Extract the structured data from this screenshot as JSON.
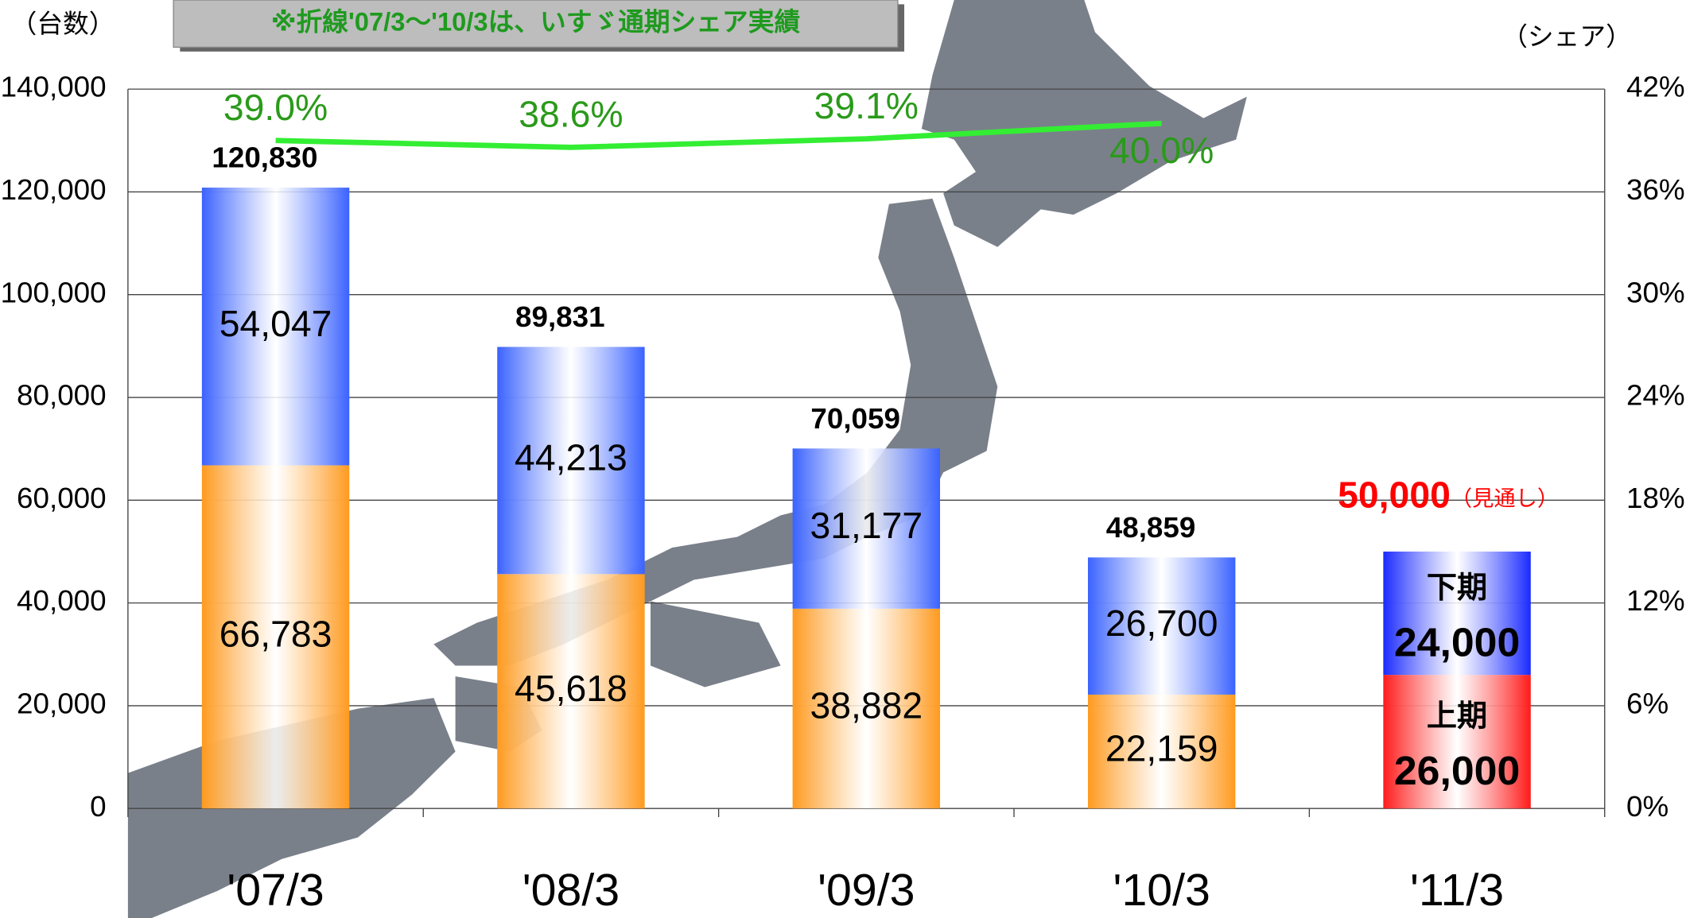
{
  "chart_data": {
    "type": "bar",
    "note": "※折線'07/3～'10/3は、いすゞ通期シェア実績",
    "y_label": "（台数）",
    "y2_label": "（シェア）",
    "forecast_note": "（見通し）",
    "categories": [
      "'07/3",
      "'08/3",
      "'09/3",
      "'10/3",
      "'11/3"
    ],
    "series": [
      {
        "name": "上期",
        "color": "#ff9a1f",
        "colors": [
          "#ff9a1f",
          "#ff9a1f",
          "#ff9a1f",
          "#ff9a1f",
          "#ff1a1a"
        ],
        "values": [
          66783,
          45618,
          38882,
          22159,
          26000
        ],
        "value_labels": [
          "66,783",
          "45,618",
          "38,882",
          "22,159",
          "26,000"
        ]
      },
      {
        "name": "下期",
        "color": "#3a62ff",
        "colors": [
          "#3a62ff",
          "#3a62ff",
          "#3a62ff",
          "#3a62ff",
          "#1a2aff"
        ],
        "values": [
          54047,
          44213,
          31177,
          26700,
          24000
        ],
        "value_labels": [
          "54,047",
          "44,213",
          "31,177",
          "26,700",
          "24,000"
        ]
      }
    ],
    "totals": {
      "values": [
        120830,
        89831,
        70059,
        48859,
        50000
      ],
      "value_labels": [
        "120,830",
        "89,831",
        "70,059",
        "48,859",
        "50,000"
      ],
      "colors": [
        "#000000",
        "#000000",
        "#000000",
        "#000000",
        "#ff0000"
      ]
    },
    "share": {
      "name": "シェア",
      "axis": "y2",
      "color": "#33ee33",
      "label_color": "#2a9a1a",
      "values": [
        39.0,
        38.6,
        39.1,
        40.0,
        null
      ],
      "value_labels": [
        "39.0%",
        "38.6%",
        "39.1%",
        "40.0%",
        null
      ]
    },
    "ylim": [
      0,
      140000
    ],
    "yticks": [
      0,
      {
        "value": 20000,
        "label": "20,000"
      },
      {
        "value": 40000,
        "label": "40,000"
      },
      {
        "value": 60000,
        "label": "60,000"
      },
      {
        "value": 80000,
        "label": "80,000"
      },
      {
        "value": 100000,
        "label": "100,000"
      },
      {
        "value": 120000,
        "label": "120,000"
      },
      {
        "value": 140000,
        "label": "140,000"
      }
    ],
    "y2lim": [
      0,
      42
    ],
    "y2ticks": [
      {
        "value": 0,
        "label": "0%"
      },
      {
        "value": 6,
        "label": "6%"
      },
      {
        "value": 12,
        "label": "12%"
      },
      {
        "value": 18,
        "label": "18%"
      },
      {
        "value": 24,
        "label": "24%"
      },
      {
        "value": 30,
        "label": "30%"
      },
      {
        "value": 36,
        "label": "36%"
      },
      {
        "value": 42,
        "label": "42%"
      }
    ],
    "grid": true
  }
}
